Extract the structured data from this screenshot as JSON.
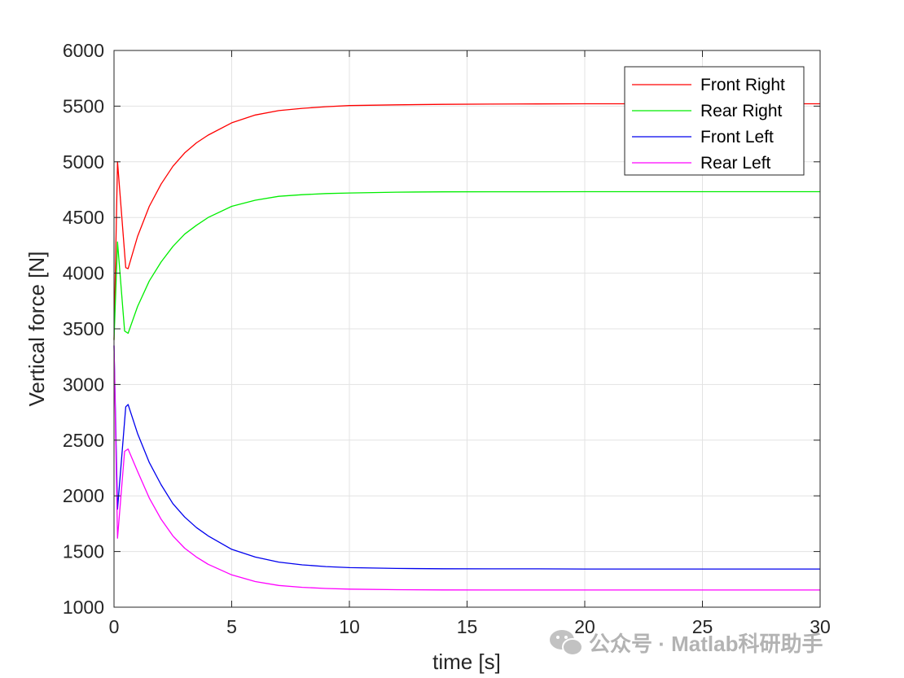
{
  "chart_data": {
    "type": "line",
    "title": "",
    "xlabel": "time [s]",
    "ylabel": "Vertical force [N]",
    "xlim": [
      0,
      30
    ],
    "ylim": [
      1000,
      6000
    ],
    "xticks": [
      0,
      5,
      10,
      15,
      20,
      25,
      30
    ],
    "yticks": [
      1000,
      1500,
      2000,
      2500,
      3000,
      3500,
      4000,
      4500,
      5000,
      5500,
      6000
    ],
    "grid": true,
    "legend_position": "top-right",
    "series": [
      {
        "name": "Front Right",
        "color": "#ff0000",
        "x": [
          0,
          0.15,
          0.5,
          0.6,
          1,
          1.5,
          2,
          2.5,
          3,
          3.5,
          4,
          5,
          6,
          7,
          8,
          9,
          10,
          12,
          14,
          16,
          18,
          20,
          22,
          25,
          28,
          30
        ],
        "y": [
          3400,
          5000,
          4050,
          4040,
          4330,
          4600,
          4800,
          4960,
          5080,
          5170,
          5240,
          5350,
          5420,
          5460,
          5480,
          5495,
          5505,
          5512,
          5516,
          5518,
          5520,
          5521,
          5521,
          5521,
          5521,
          5521
        ]
      },
      {
        "name": "Rear Right",
        "color": "#00ee00",
        "x": [
          0,
          0.15,
          0.45,
          0.6,
          1,
          1.5,
          2,
          2.5,
          3,
          3.5,
          4,
          5,
          6,
          7,
          8,
          9,
          10,
          12,
          14,
          16,
          18,
          20,
          22,
          25,
          28,
          30
        ],
        "y": [
          3400,
          4280,
          3480,
          3460,
          3700,
          3930,
          4100,
          4240,
          4350,
          4430,
          4500,
          4600,
          4655,
          4690,
          4705,
          4715,
          4720,
          4727,
          4730,
          4731,
          4731,
          4732,
          4732,
          4732,
          4732,
          4732
        ]
      },
      {
        "name": "Front Left",
        "color": "#0000ee",
        "x": [
          0,
          0.15,
          0.5,
          0.6,
          1,
          1.5,
          2,
          2.5,
          3,
          3.5,
          4,
          5,
          6,
          7,
          8,
          9,
          10,
          12,
          14,
          16,
          18,
          20,
          22,
          25,
          28,
          30
        ],
        "y": [
          3350,
          1880,
          2800,
          2820,
          2560,
          2300,
          2100,
          1930,
          1810,
          1715,
          1640,
          1520,
          1450,
          1405,
          1380,
          1365,
          1355,
          1348,
          1345,
          1344,
          1344,
          1343,
          1343,
          1343,
          1343,
          1343
        ]
      },
      {
        "name": "Rear Left",
        "color": "#ff00ff",
        "x": [
          0,
          0.15,
          0.45,
          0.6,
          1,
          1.5,
          2,
          2.5,
          3,
          3.5,
          4,
          5,
          6,
          7,
          8,
          9,
          10,
          12,
          14,
          16,
          18,
          20,
          22,
          25,
          28,
          30
        ],
        "y": [
          3350,
          1620,
          2400,
          2420,
          2220,
          1980,
          1790,
          1640,
          1530,
          1450,
          1385,
          1290,
          1230,
          1195,
          1178,
          1168,
          1162,
          1157,
          1155,
          1154,
          1154,
          1154,
          1154,
          1154,
          1154,
          1154
        ]
      }
    ]
  },
  "watermark": {
    "text": "公众号 · Matlab科研助手",
    "icon": "wechat-icon"
  }
}
